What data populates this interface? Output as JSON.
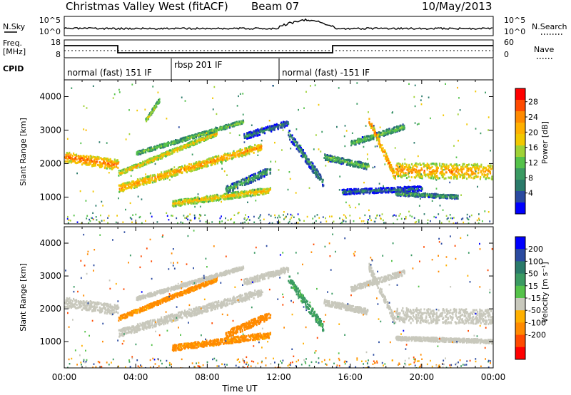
{
  "header": {
    "radar": "Christmas Valley West (fitACF)",
    "beam": "Beam 07",
    "date": "10/May/2013"
  },
  "panels": {
    "nsky": {
      "label": "N.Sky",
      "right_label": "N.Search",
      "left_ticks": [
        "10^5",
        "10^0"
      ],
      "right_ticks": [
        "10^5",
        "10^0"
      ]
    },
    "freq": {
      "label_top": "Freq.",
      "label_unit": "[MHz]",
      "left_ticks": [
        "18",
        "8"
      ],
      "right_ticks": [
        "60",
        "0"
      ],
      "right_label": "Nave"
    },
    "cpid": {
      "label": "CPID",
      "segments": [
        {
          "name": "normal (fast) 151 IF",
          "start_hour": 0
        },
        {
          "name": "rbsp 201 IF",
          "start_hour": 6
        },
        {
          "name": "normal (fast) -151 IF",
          "start_hour": 12
        }
      ]
    }
  },
  "chart_data": [
    {
      "type": "heatmap",
      "name": "power",
      "ylabel": "Slant Range [km]",
      "xlabel": "",
      "xlim": [
        0,
        24
      ],
      "ylim": [
        200,
        4500
      ],
      "x_ticks": [
        "00:00",
        "04:00",
        "08:00",
        "12:00",
        "16:00",
        "20:00",
        "00:00"
      ],
      "y_ticks": [
        1000,
        2000,
        3000,
        4000
      ],
      "colorbar": {
        "label": "Power [dB]",
        "ticks": [
          28,
          24,
          20,
          16,
          12,
          8,
          4
        ],
        "colors": [
          "#ff0000",
          "#ff4a00",
          "#ff8a00",
          "#ffb000",
          "#f2c800",
          "#9fd236",
          "#55c24a",
          "#3a9a62",
          "#2a7a6a",
          "#2a4aa0",
          "#0000ff"
        ]
      },
      "bands": [
        {
          "t0": 0.0,
          "r0": 2200,
          "t1": 3.0,
          "r1": 1950,
          "thick": 300,
          "power": 26
        },
        {
          "t0": 3.0,
          "r0": 1250,
          "t1": 11.0,
          "r1": 2500,
          "thick": 230,
          "power": 24
        },
        {
          "t0": 3.0,
          "r0": 1700,
          "t1": 8.5,
          "r1": 2900,
          "thick": 130,
          "power": 22
        },
        {
          "t0": 4.0,
          "r0": 2300,
          "t1": 10.0,
          "r1": 3250,
          "thick": 110,
          "power": 16
        },
        {
          "t0": 4.5,
          "r0": 3250,
          "t1": 5.3,
          "r1": 3900,
          "thick": 120,
          "power": 18
        },
        {
          "t0": 6.0,
          "r0": 800,
          "t1": 11.5,
          "r1": 1200,
          "thick": 180,
          "power": 22
        },
        {
          "t0": 9.0,
          "r0": 1200,
          "t1": 11.5,
          "r1": 1800,
          "thick": 220,
          "power": 12
        },
        {
          "t0": 10.0,
          "r0": 2800,
          "t1": 12.5,
          "r1": 3200,
          "thick": 180,
          "power": 8
        },
        {
          "t0": 12.5,
          "r0": 2900,
          "t1": 14.5,
          "r1": 1400,
          "thick": 260,
          "power": 10
        },
        {
          "t0": 14.5,
          "r0": 2200,
          "t1": 17.0,
          "r1": 1900,
          "thick": 180,
          "power": 14
        },
        {
          "t0": 15.5,
          "r0": 1150,
          "t1": 20.0,
          "r1": 1250,
          "thick": 150,
          "power": 8
        },
        {
          "t0": 16.0,
          "r0": 2600,
          "t1": 19.0,
          "r1": 3100,
          "thick": 160,
          "power": 14
        },
        {
          "t0": 17.0,
          "r0": 3300,
          "t1": 18.5,
          "r1": 1600,
          "thick": 220,
          "power": 26
        },
        {
          "t0": 18.5,
          "r0": 1800,
          "t1": 24.0,
          "r1": 1750,
          "thick": 450,
          "power": 24
        },
        {
          "t0": 18.5,
          "r0": 1100,
          "t1": 22.0,
          "r1": 1000,
          "thick": 120,
          "power": 12
        }
      ]
    },
    {
      "type": "heatmap",
      "name": "velocity",
      "ylabel": "Slant Range [km]",
      "xlabel": "Time UT",
      "xlim": [
        0,
        24
      ],
      "ylim": [
        200,
        4500
      ],
      "x_ticks": [
        "00:00",
        "04:00",
        "08:00",
        "12:00",
        "16:00",
        "20:00",
        "00:00"
      ],
      "y_ticks": [
        1000,
        2000,
        3000,
        4000
      ],
      "colorbar": {
        "label": "Velocity [m s⁻¹]",
        "ticks": [
          "200",
          "100",
          "50",
          "15",
          "-15",
          "-50",
          "-100",
          "-200"
        ],
        "colors": [
          "#0000ff",
          "#2a4aa0",
          "#2a7a6a",
          "#3a9a62",
          "#55c24a",
          "#c8c8bc",
          "#ffb000",
          "#ff8a00",
          "#ff4a00",
          "#ff0000"
        ]
      },
      "bands": [
        {
          "t0": 0.0,
          "r0": 2200,
          "t1": 3.0,
          "r1": 1950,
          "thick": 300,
          "vel": 0
        },
        {
          "t0": 3.0,
          "r0": 1250,
          "t1": 11.0,
          "r1": 2500,
          "thick": 230,
          "vel": 0
        },
        {
          "t0": 3.0,
          "r0": 1700,
          "t1": 8.5,
          "r1": 2900,
          "thick": 130,
          "vel": -60
        },
        {
          "t0": 4.0,
          "r0": 2300,
          "t1": 10.0,
          "r1": 3250,
          "thick": 110,
          "vel": 0
        },
        {
          "t0": 6.0,
          "r0": 800,
          "t1": 11.5,
          "r1": 1200,
          "thick": 180,
          "vel": -60
        },
        {
          "t0": 9.0,
          "r0": 1200,
          "t1": 11.5,
          "r1": 1800,
          "thick": 220,
          "vel": -80
        },
        {
          "t0": 10.0,
          "r0": 2800,
          "t1": 12.5,
          "r1": 3200,
          "thick": 180,
          "vel": 0
        },
        {
          "t0": 12.5,
          "r0": 2900,
          "t1": 14.5,
          "r1": 1400,
          "thick": 260,
          "vel": 40
        },
        {
          "t0": 14.5,
          "r0": 2200,
          "t1": 17.0,
          "r1": 1900,
          "thick": 180,
          "vel": 0
        },
        {
          "t0": 16.0,
          "r0": 2600,
          "t1": 19.0,
          "r1": 3100,
          "thick": 160,
          "vel": 0
        },
        {
          "t0": 17.0,
          "r0": 3300,
          "t1": 18.5,
          "r1": 1600,
          "thick": 220,
          "vel": 0
        },
        {
          "t0": 18.5,
          "r0": 1800,
          "t1": 24.0,
          "r1": 1750,
          "thick": 450,
          "vel": 0
        },
        {
          "t0": 18.5,
          "r0": 1100,
          "t1": 24.0,
          "r1": 1000,
          "thick": 120,
          "vel": 0
        }
      ]
    }
  ]
}
